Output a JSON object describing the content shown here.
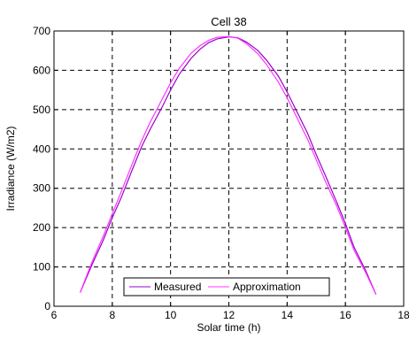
{
  "chart_data": {
    "type": "line",
    "title": "Cell 38",
    "xlabel": "Solar time (h)",
    "ylabel": "Irradiance (W/m2)",
    "xlim": [
      6,
      18
    ],
    "ylim": [
      0,
      700
    ],
    "xticks": [
      6,
      8,
      10,
      12,
      14,
      16,
      18
    ],
    "yticks": [
      0,
      100,
      200,
      300,
      400,
      500,
      600,
      700
    ],
    "grid": true,
    "grid_style": "dashed",
    "legend_position": "bottom-center",
    "series": [
      {
        "name": "Measured",
        "color": "#9900cc",
        "x": [
          6.9,
          7.3,
          7.7,
          8.0,
          8.3,
          8.7,
          9.0,
          9.3,
          9.7,
          10.0,
          10.3,
          10.7,
          11.0,
          11.3,
          11.6,
          12.0,
          12.3,
          12.6,
          13.0,
          13.3,
          13.7,
          14.0,
          14.3,
          14.7,
          15.0,
          15.3,
          15.7,
          16.0,
          16.3,
          16.7,
          17.05
        ],
        "y": [
          35,
          105,
          170,
          225,
          275,
          350,
          405,
          450,
          505,
          550,
          590,
          630,
          653,
          670,
          680,
          685,
          683,
          672,
          650,
          625,
          585,
          545,
          500,
          440,
          385,
          335,
          265,
          210,
          150,
          90,
          30
        ]
      },
      {
        "name": "Approximation",
        "color": "#ff33ff",
        "x": [
          6.9,
          7.3,
          7.7,
          8.0,
          8.3,
          8.7,
          9.0,
          9.3,
          9.7,
          10.0,
          10.3,
          10.7,
          11.0,
          11.3,
          11.6,
          12.0,
          12.3,
          12.6,
          13.0,
          13.3,
          13.7,
          14.0,
          14.3,
          14.7,
          15.0,
          15.3,
          15.7,
          16.0,
          16.3,
          16.7,
          17.05
        ],
        "y": [
          35,
          112,
          180,
          235,
          290,
          365,
          420,
          468,
          525,
          568,
          605,
          643,
          662,
          676,
          684,
          686,
          682,
          668,
          642,
          614,
          570,
          530,
          485,
          425,
          372,
          320,
          255,
          200,
          142,
          85,
          30
        ]
      }
    ]
  }
}
